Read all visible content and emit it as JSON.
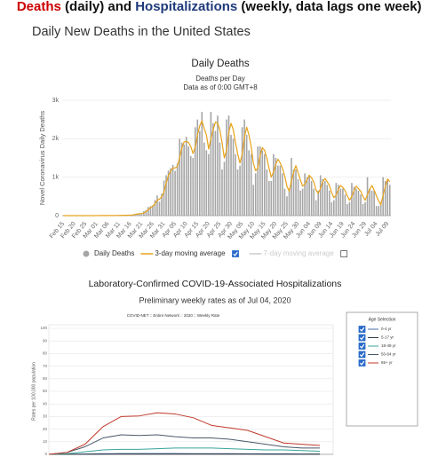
{
  "header": {
    "parts": [
      {
        "text": "Deaths",
        "color": "#cc0000"
      },
      {
        "text": " (daily) and ",
        "color": "#111111"
      },
      {
        "text": "Hospitalizations",
        "color": "#1f3a7a"
      },
      {
        "text": " (weekly, data lags one week)",
        "color": "#111111"
      }
    ]
  },
  "section_title": "Daily New Deaths in the United States",
  "chart_data": [
    {
      "type": "bar",
      "title": "Daily Deaths",
      "subtitle": "Deaths per Day",
      "note": "Data as of 0:00 GMT+8",
      "y_label": "Novel Coronavirus Daily Deaths",
      "categories": [
        "Feb 15",
        null,
        null,
        null,
        null,
        "Feb 20",
        null,
        null,
        null,
        null,
        "Feb 25",
        null,
        null,
        null,
        null,
        "Mar 01",
        null,
        null,
        null,
        null,
        "Mar 06",
        null,
        null,
        null,
        null,
        "Mar 11",
        null,
        null,
        null,
        null,
        "Mar 16",
        null,
        null,
        null,
        null,
        "Mar 21",
        null,
        null,
        null,
        null,
        "Mar 26",
        null,
        null,
        null,
        null,
        "Mar 31",
        null,
        null,
        null,
        null,
        "Apr 05",
        null,
        null,
        null,
        null,
        "Apr 10",
        null,
        null,
        null,
        null,
        "Apr 15",
        null,
        null,
        null,
        null,
        "Apr 20",
        null,
        null,
        null,
        null,
        "Apr 25",
        null,
        null,
        null,
        null,
        "Apr 30",
        null,
        null,
        null,
        null,
        "May 05",
        null,
        null,
        null,
        null,
        "May 10",
        null,
        null,
        null,
        null,
        "May 15",
        null,
        null,
        null,
        null,
        "May 20",
        null,
        null,
        null,
        null,
        "May 25",
        null,
        null,
        null,
        null,
        "May 30",
        null,
        null,
        null,
        null,
        "Jun 04",
        null,
        null,
        null,
        null,
        "Jun 09",
        null,
        null,
        null,
        null,
        "Jun 14",
        null,
        null,
        null,
        null,
        "Jun 19",
        null,
        null,
        null,
        null,
        "Jun 24",
        null,
        null,
        null,
        null,
        "Jun 29",
        null,
        null,
        null,
        null,
        "Jul 04",
        null,
        null,
        null,
        null,
        "Jul 09",
        null
      ],
      "series": [
        {
          "name": "Daily Deaths",
          "color": "#a6a6a6",
          "values": [
            0,
            0,
            0,
            0,
            0,
            0,
            0,
            0,
            0,
            0,
            0,
            0,
            0,
            0,
            1,
            1,
            5,
            1,
            4,
            1,
            2,
            3,
            4,
            4,
            5,
            7,
            7,
            11,
            9,
            12,
            18,
            23,
            41,
            56,
            49,
            47,
            115,
            139,
            225,
            247,
            268,
            406,
            525,
            363,
            571,
            912,
            1049,
            1172,
            1231,
            1320,
            1165,
            1356,
            2000,
            1900,
            1850,
            2050,
            1800,
            1550,
            1500,
            2300,
            2500,
            2200,
            2700,
            1900,
            1700,
            1600,
            2700,
            2400,
            2200,
            2600,
            1900,
            1200,
            1400,
            2500,
            2600,
            2100,
            2000,
            1600,
            1200,
            1300,
            2300,
            2500,
            2100,
            1700,
            1600,
            800,
            1100,
            1800,
            1800,
            1700,
            1600,
            1200,
            900,
            900,
            1600,
            1500,
            1300,
            1300,
            1100,
            700,
            500,
            700,
            1500,
            1200,
            1200,
            950,
            650,
            700,
            1100,
            1000,
            1050,
            900,
            700,
            400,
            650,
            1050,
            950,
            900,
            800,
            650,
            350,
            400,
            850,
            800,
            700,
            700,
            550,
            300,
            350,
            850,
            750,
            700,
            650,
            550,
            300,
            350,
            1000,
            700,
            650,
            650,
            250,
            250,
            350,
            1000,
            900,
            950,
            800
          ]
        },
        {
          "name": "3-day moving average",
          "type": "line",
          "color": "#e8a21a",
          "values": [
            0,
            0,
            0,
            0,
            0,
            0,
            0,
            0,
            0,
            0,
            0,
            0,
            0,
            0,
            0,
            1,
            2,
            2,
            3,
            2,
            2,
            2,
            3,
            4,
            4,
            5,
            6,
            8,
            9,
            11,
            13,
            18,
            27,
            40,
            49,
            51,
            70,
            100,
            160,
            204,
            247,
            307,
            400,
            431,
            486,
            616,
            844,
            1044,
            1151,
            1241,
            1239,
            1280,
            1507,
            1752,
            1917,
            1933,
            1900,
            1800,
            1617,
            1783,
            2100,
            2333,
            2467,
            2267,
            2100,
            1733,
            2000,
            2233,
            2433,
            2400,
            2233,
            1900,
            1500,
            1700,
            2167,
            2400,
            2233,
            1900,
            1600,
            1367,
            1600,
            2033,
            2300,
            2100,
            1800,
            1367,
            1167,
            1233,
            1567,
            1767,
            1700,
            1500,
            1233,
            1000,
            1133,
            1333,
            1467,
            1367,
            1233,
            1033,
            767,
            633,
            900,
            1133,
            1300,
            1117,
            933,
            767,
            817,
            933,
            1050,
            983,
            883,
            667,
            583,
            700,
            883,
            967,
            883,
            783,
            600,
            467,
            533,
            683,
            783,
            733,
            650,
            517,
            400,
            500,
            650,
            767,
            700,
            633,
            500,
            400,
            550,
            683,
            783,
            667,
            517,
            383,
            283,
            533,
            750,
            950,
            883
          ]
        }
      ],
      "inactive_legend": [
        "7-day moving average"
      ],
      "inactive_color": "#cccccc",
      "legend": "bottom",
      "ylim": [
        0,
        3000
      ],
      "yticks": [
        0,
        {
          "value": 1000,
          "label": "1k"
        },
        {
          "value": 2000,
          "label": "2k"
        },
        {
          "value": 3000,
          "label": "3k"
        }
      ],
      "grid": true
    },
    {
      "type": "line",
      "title": "Laboratory-Confirmed COVID-19-Associated Hospitalizations",
      "subtitle": "Preliminary weekly rates as of Jul 04, 2020",
      "note": "COVID-NET :: Entire Network :: 2020 :: Weekly Rate",
      "y_label": "Rates per 100,000 population",
      "legend_title": "Age Selection",
      "legend": "right",
      "categories": [
        null,
        null,
        null,
        null,
        null,
        null,
        null,
        null,
        null,
        null,
        null,
        null,
        null,
        null,
        null,
        null
      ],
      "series": [
        {
          "name": "0-4 yr",
          "color": "#4a6fa5",
          "values": [
            0,
            0.1,
            0.3,
            0.5,
            0.6,
            0.6,
            0.6,
            0.6,
            0.5,
            0.5,
            0.5,
            0.4,
            0.4,
            0.4,
            0.3,
            0.3
          ]
        },
        {
          "name": "5-17 yr",
          "color": "#333a40",
          "values": [
            0,
            0,
            0.1,
            0.1,
            0.2,
            0.2,
            0.2,
            0.2,
            0.2,
            0.2,
            0.2,
            0.2,
            0.1,
            0.1,
            0.1,
            0.1
          ]
        },
        {
          "name": "18-49 yr",
          "color": "#3aa59a",
          "values": [
            0,
            0.5,
            2,
            3.5,
            4,
            4,
            4.5,
            5,
            5,
            5,
            4.5,
            4,
            3.5,
            3.5,
            3,
            2.5
          ]
        },
        {
          "name": "50-64 yr",
          "color": "#4a5a6a",
          "values": [
            0,
            1.5,
            6,
            13,
            15.5,
            15,
            15.5,
            14,
            13,
            13,
            12,
            10,
            8,
            6,
            5,
            5
          ]
        },
        {
          "name": "65+ yr",
          "color": "#c0392b",
          "values": [
            0,
            1.5,
            8,
            22,
            30,
            30.5,
            33,
            32,
            29,
            23,
            21,
            19,
            14,
            9,
            8,
            7
          ]
        }
      ],
      "ylim": [
        0,
        100
      ],
      "yticks": [
        0,
        10,
        20,
        30,
        40,
        50,
        60,
        70,
        80,
        90,
        100
      ],
      "grid": true
    }
  ]
}
